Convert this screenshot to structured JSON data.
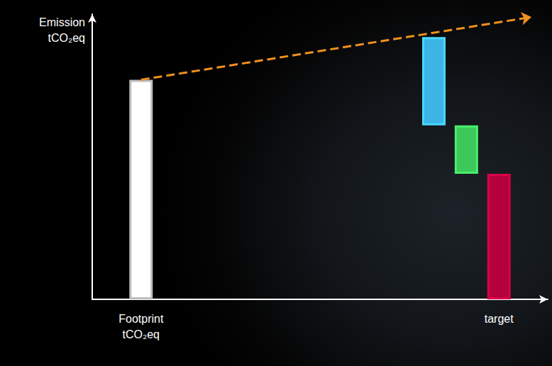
{
  "chart_data": {
    "type": "waterfall",
    "ylabel": "Emission\ntCO₂eq",
    "categories": [
      null,
      "Footprint\ntCO₂eq",
      null,
      null,
      null,
      null,
      null,
      null,
      null,
      null,
      null,
      null,
      "target",
      null
    ],
    "values": [
      null,
      77,
      null,
      null,
      null,
      null,
      null,
      null,
      null,
      null,
      31,
      17,
      44,
      null
    ],
    "bases": [
      null,
      0,
      null,
      null,
      null,
      null,
      null,
      null,
      null,
      null,
      61,
      44,
      0,
      null
    ],
    "colors": [
      null,
      "#ffffff",
      null,
      null,
      null,
      null,
      null,
      null,
      null,
      null,
      "#3cb4e6",
      "#3cc85a",
      "#b4003c",
      null
    ],
    "ylim": [
      0,
      100
    ],
    "tick_labels": "x",
    "trend": {
      "start": 77,
      "end": 99,
      "color": "#f0901e",
      "line_style": "dashed"
    }
  }
}
